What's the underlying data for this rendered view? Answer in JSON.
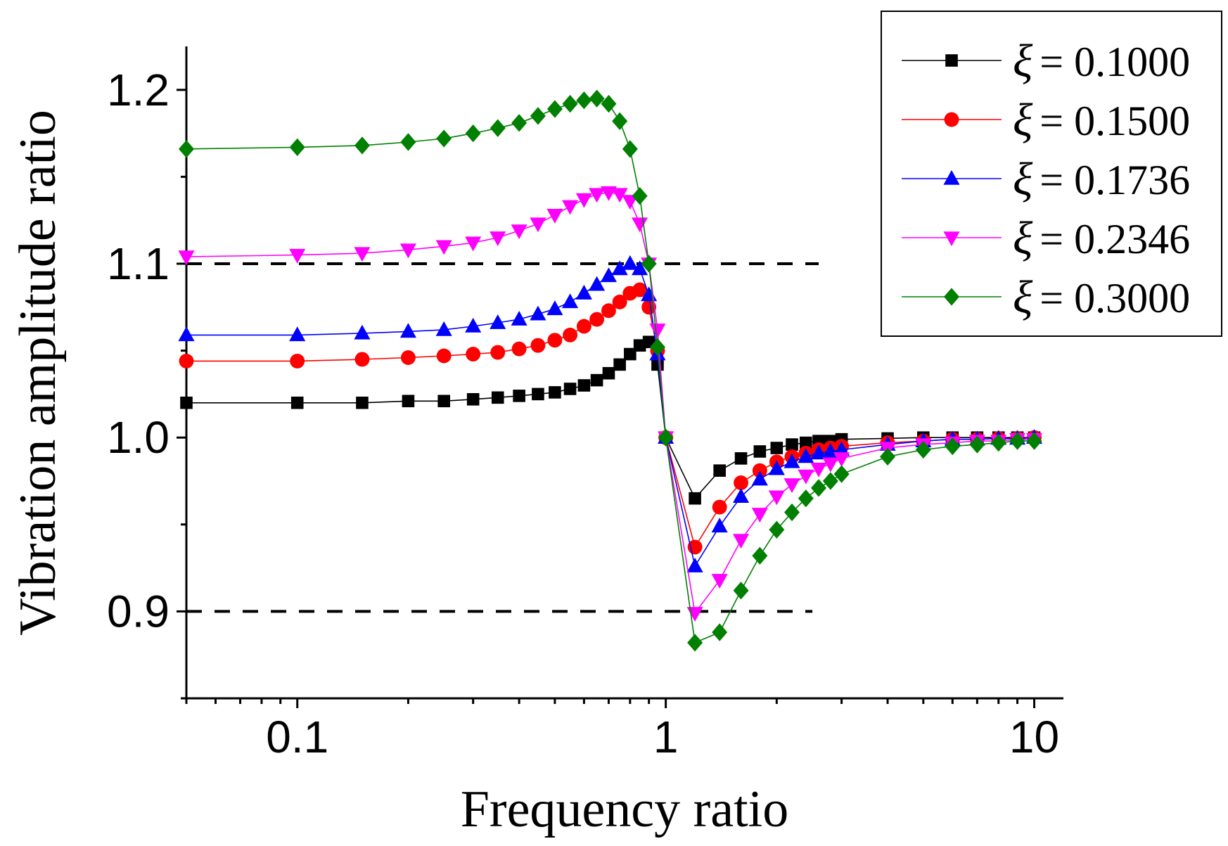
{
  "chart_data": {
    "type": "line",
    "title": "",
    "xlabel": "Frequency ratio",
    "ylabel": "Vibration amplitude ratio",
    "xscale": "log",
    "xlim": [
      0.05,
      12
    ],
    "ylim": [
      0.85,
      1.225
    ],
    "x_ticks": [
      0.1,
      1,
      10
    ],
    "x_tick_labels": [
      "0.1",
      "1",
      "10"
    ],
    "y_ticks": [
      0.9,
      1.0,
      1.1,
      1.2
    ],
    "y_tick_labels": [
      "0.9",
      "1.0",
      "1.1",
      "1.2"
    ],
    "reference_lines": [
      {
        "y": 1.1,
        "x_from": 0.05,
        "x_to": 2.6,
        "style": "dashed",
        "color": "#000000"
      },
      {
        "y": 0.9,
        "x_from": 0.05,
        "x_to": 2.5,
        "style": "dashed",
        "color": "#000000"
      }
    ],
    "legend_position": "top-right",
    "x": [
      0.05,
      0.1,
      0.15,
      0.2,
      0.25,
      0.3,
      0.35,
      0.4,
      0.45,
      0.5,
      0.55,
      0.6,
      0.65,
      0.7,
      0.75,
      0.8,
      0.85,
      0.9,
      0.95,
      1.0,
      1.2,
      1.4,
      1.6,
      1.8,
      2.0,
      2.2,
      2.4,
      2.6,
      2.8,
      3.0,
      4.0,
      5.0,
      6.0,
      7.0,
      8.0,
      9.0,
      10.0
    ],
    "series": [
      {
        "name": "ξ = 0.1000",
        "symbol": "ξ",
        "label_value": "= 0.1000",
        "color": "#000000",
        "marker": "square",
        "values": [
          1.02,
          1.02,
          1.02,
          1.021,
          1.021,
          1.022,
          1.023,
          1.024,
          1.025,
          1.026,
          1.028,
          1.03,
          1.033,
          1.037,
          1.042,
          1.048,
          1.053,
          1.055,
          1.042,
          1.0,
          0.965,
          0.981,
          0.988,
          0.992,
          0.994,
          0.996,
          0.997,
          0.998,
          0.998,
          0.999,
          0.9995,
          1.0,
          1.0,
          1.0,
          1.0,
          1.0,
          1.0
        ]
      },
      {
        "name": "ξ = 0.1500",
        "symbol": "ξ",
        "label_value": "= 0.1500",
        "color": "#ff0000",
        "marker": "circle",
        "values": [
          1.044,
          1.044,
          1.045,
          1.046,
          1.047,
          1.048,
          1.049,
          1.051,
          1.053,
          1.056,
          1.059,
          1.064,
          1.068,
          1.073,
          1.078,
          1.083,
          1.085,
          1.075,
          1.05,
          1.0,
          0.937,
          0.96,
          0.974,
          0.981,
          0.986,
          0.989,
          0.991,
          0.993,
          0.994,
          0.995,
          0.997,
          0.998,
          0.999,
          0.999,
          0.9995,
          0.9995,
          1.0
        ]
      },
      {
        "name": "ξ = 0.1736",
        "symbol": "ξ",
        "label_value": "= 0.1736",
        "color": "#0000ff",
        "marker": "triangle-up",
        "values": [
          1.059,
          1.059,
          1.06,
          1.061,
          1.062,
          1.064,
          1.066,
          1.068,
          1.071,
          1.074,
          1.078,
          1.083,
          1.088,
          1.093,
          1.097,
          1.1,
          1.097,
          1.082,
          1.048,
          1.0,
          0.926,
          0.949,
          0.966,
          0.976,
          0.982,
          0.986,
          0.989,
          0.991,
          0.992,
          0.993,
          0.996,
          0.998,
          0.999,
          0.999,
          0.9995,
          0.9995,
          1.0
        ]
      },
      {
        "name": "ξ = 0.2346",
        "symbol": "ξ",
        "label_value": "= 0.2346",
        "color": "#ff00ff",
        "marker": "triangle-down",
        "values": [
          1.104,
          1.105,
          1.106,
          1.108,
          1.11,
          1.112,
          1.115,
          1.119,
          1.123,
          1.128,
          1.133,
          1.137,
          1.14,
          1.141,
          1.14,
          1.136,
          1.123,
          1.1,
          1.062,
          1.0,
          0.899,
          0.918,
          0.941,
          0.956,
          0.966,
          0.973,
          0.978,
          0.982,
          0.985,
          0.988,
          0.994,
          0.996,
          0.997,
          0.998,
          0.998,
          0.999,
          0.999
        ]
      },
      {
        "name": "ξ = 0.3000",
        "symbol": "ξ",
        "label_value": "= 0.3000",
        "color": "#008000",
        "marker": "diamond",
        "values": [
          1.166,
          1.167,
          1.168,
          1.17,
          1.172,
          1.175,
          1.178,
          1.181,
          1.185,
          1.189,
          1.192,
          1.194,
          1.195,
          1.192,
          1.182,
          1.166,
          1.139,
          1.1,
          1.052,
          1.0,
          0.882,
          0.888,
          0.912,
          0.932,
          0.947,
          0.957,
          0.965,
          0.971,
          0.975,
          0.979,
          0.989,
          0.993,
          0.995,
          0.996,
          0.997,
          0.998,
          0.998
        ]
      }
    ]
  }
}
